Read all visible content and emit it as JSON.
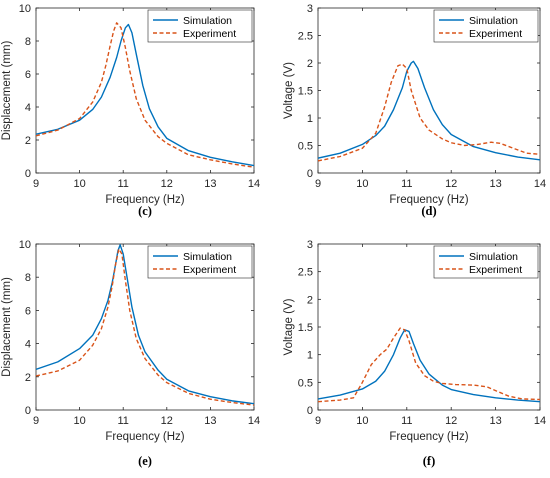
{
  "chart_data": [
    {
      "type": "line",
      "caption": "(c)",
      "xlabel": "Frequency (Hz)",
      "ylabel": "Displacement (mm)",
      "xlim": [
        9,
        14
      ],
      "ylim": [
        0,
        10
      ],
      "xticks": [
        9,
        10,
        11,
        12,
        13,
        14
      ],
      "yticks": [
        0,
        2,
        4,
        6,
        8,
        10
      ],
      "legend": "top-right",
      "series": [
        {
          "name": "Simulation",
          "color": "#0072BD",
          "style": "solid",
          "x": [
            9.0,
            9.5,
            10.0,
            10.3,
            10.5,
            10.7,
            10.85,
            10.95,
            11.05,
            11.12,
            11.2,
            11.3,
            11.45,
            11.6,
            11.8,
            12.0,
            12.5,
            13.0,
            13.5,
            14.0
          ],
          "y": [
            2.35,
            2.65,
            3.2,
            3.85,
            4.6,
            5.8,
            7.0,
            8.0,
            8.8,
            9.0,
            8.5,
            7.2,
            5.3,
            3.9,
            2.8,
            2.1,
            1.35,
            0.95,
            0.68,
            0.45
          ]
        },
        {
          "name": "Experiment",
          "color": "#D95319",
          "style": "dashed",
          "x": [
            9.0,
            9.5,
            10.0,
            10.3,
            10.5,
            10.6,
            10.7,
            10.78,
            10.85,
            10.95,
            11.05,
            11.15,
            11.3,
            11.5,
            11.8,
            12.0,
            12.5,
            13.0,
            13.5,
            14.0
          ],
          "y": [
            2.25,
            2.6,
            3.3,
            4.3,
            5.5,
            6.5,
            7.7,
            8.6,
            9.1,
            8.8,
            7.6,
            6.2,
            4.5,
            3.2,
            2.2,
            1.8,
            1.1,
            0.8,
            0.55,
            0.35
          ]
        }
      ]
    },
    {
      "type": "line",
      "caption": "(d)",
      "xlabel": "Frequency (Hz)",
      "ylabel": "Voltage (V)",
      "xlim": [
        9,
        14
      ],
      "ylim": [
        0,
        3
      ],
      "xticks": [
        9,
        10,
        11,
        12,
        13,
        14
      ],
      "yticks": [
        0,
        0.5,
        1,
        1.5,
        2,
        2.5,
        3
      ],
      "legend": "top-right",
      "series": [
        {
          "name": "Simulation",
          "color": "#0072BD",
          "style": "solid",
          "x": [
            9.0,
            9.5,
            10.0,
            10.3,
            10.5,
            10.7,
            10.9,
            11.0,
            11.1,
            11.15,
            11.25,
            11.4,
            11.6,
            11.8,
            12.0,
            12.5,
            13.0,
            13.5,
            14.0
          ],
          "y": [
            0.27,
            0.36,
            0.52,
            0.68,
            0.85,
            1.15,
            1.55,
            1.85,
            2.0,
            2.03,
            1.9,
            1.55,
            1.15,
            0.88,
            0.7,
            0.48,
            0.37,
            0.29,
            0.24
          ]
        },
        {
          "name": "Experiment",
          "color": "#D95319",
          "style": "dashed",
          "x": [
            9.0,
            9.5,
            10.0,
            10.3,
            10.5,
            10.65,
            10.8,
            10.9,
            11.0,
            11.1,
            11.3,
            11.5,
            11.8,
            12.0,
            12.3,
            12.6,
            12.9,
            13.1,
            13.4,
            13.7,
            14.0
          ],
          "y": [
            0.22,
            0.3,
            0.45,
            0.72,
            1.2,
            1.65,
            1.95,
            1.98,
            1.9,
            1.5,
            1.0,
            0.78,
            0.62,
            0.55,
            0.5,
            0.52,
            0.56,
            0.54,
            0.45,
            0.36,
            0.34
          ]
        }
      ]
    },
    {
      "type": "line",
      "caption": "(e)",
      "xlabel": "Frequency (Hz)",
      "ylabel": "Displacement (mm)",
      "xlim": [
        9,
        14
      ],
      "ylim": [
        0,
        10
      ],
      "xticks": [
        9,
        10,
        11,
        12,
        13,
        14
      ],
      "yticks": [
        0,
        2,
        4,
        6,
        8,
        10
      ],
      "legend": "top-right",
      "series": [
        {
          "name": "Simulation",
          "color": "#0072BD",
          "style": "solid",
          "x": [
            9.0,
            9.5,
            10.0,
            10.3,
            10.5,
            10.65,
            10.75,
            10.82,
            10.88,
            10.93,
            11.0,
            11.1,
            11.2,
            11.35,
            11.5,
            11.8,
            12.0,
            12.5,
            13.0,
            13.5,
            14.0
          ],
          "y": [
            2.45,
            2.9,
            3.7,
            4.5,
            5.5,
            6.6,
            7.7,
            8.7,
            9.6,
            9.95,
            9.4,
            7.8,
            6.2,
            4.5,
            3.5,
            2.4,
            1.85,
            1.15,
            0.8,
            0.55,
            0.38
          ]
        },
        {
          "name": "Experiment",
          "color": "#D95319",
          "style": "dashed",
          "x": [
            9.0,
            9.5,
            10.0,
            10.3,
            10.5,
            10.65,
            10.75,
            10.82,
            10.9,
            10.97,
            11.05,
            11.15,
            11.3,
            11.5,
            11.8,
            12.0,
            12.5,
            13.0,
            13.5,
            14.0
          ],
          "y": [
            2.05,
            2.35,
            3.0,
            3.9,
            4.9,
            6.2,
            7.5,
            8.7,
            9.7,
            9.4,
            7.8,
            6.0,
            4.3,
            3.1,
            2.1,
            1.65,
            1.0,
            0.65,
            0.45,
            0.3
          ]
        }
      ]
    },
    {
      "type": "line",
      "caption": "(f)",
      "xlabel": "Frequency (Hz)",
      "ylabel": "Voltage (V)",
      "xlim": [
        9,
        14
      ],
      "ylim": [
        0,
        3
      ],
      "xticks": [
        9,
        10,
        11,
        12,
        13,
        14
      ],
      "yticks": [
        0,
        0.5,
        1,
        1.5,
        2,
        2.5,
        3
      ],
      "legend": "top-right",
      "series": [
        {
          "name": "Simulation",
          "color": "#0072BD",
          "style": "solid",
          "x": [
            9.0,
            9.5,
            10.0,
            10.3,
            10.5,
            10.7,
            10.85,
            10.95,
            11.05,
            11.15,
            11.3,
            11.5,
            11.8,
            12.0,
            12.5,
            13.0,
            13.5,
            14.0
          ],
          "y": [
            0.2,
            0.27,
            0.38,
            0.52,
            0.7,
            1.0,
            1.3,
            1.45,
            1.42,
            1.2,
            0.9,
            0.65,
            0.45,
            0.37,
            0.28,
            0.22,
            0.18,
            0.15
          ]
        },
        {
          "name": "Experiment",
          "color": "#D95319",
          "style": "dashed",
          "x": [
            9.0,
            9.5,
            9.8,
            10.0,
            10.2,
            10.4,
            10.55,
            10.7,
            10.85,
            10.95,
            11.05,
            11.2,
            11.4,
            11.6,
            11.8,
            12.1,
            12.5,
            12.8,
            13.0,
            13.3,
            13.6,
            14.0
          ],
          "y": [
            0.15,
            0.18,
            0.22,
            0.5,
            0.82,
            1.0,
            1.1,
            1.3,
            1.48,
            1.45,
            1.25,
            0.85,
            0.62,
            0.52,
            0.48,
            0.46,
            0.45,
            0.42,
            0.35,
            0.25,
            0.2,
            0.19
          ]
        }
      ]
    }
  ]
}
